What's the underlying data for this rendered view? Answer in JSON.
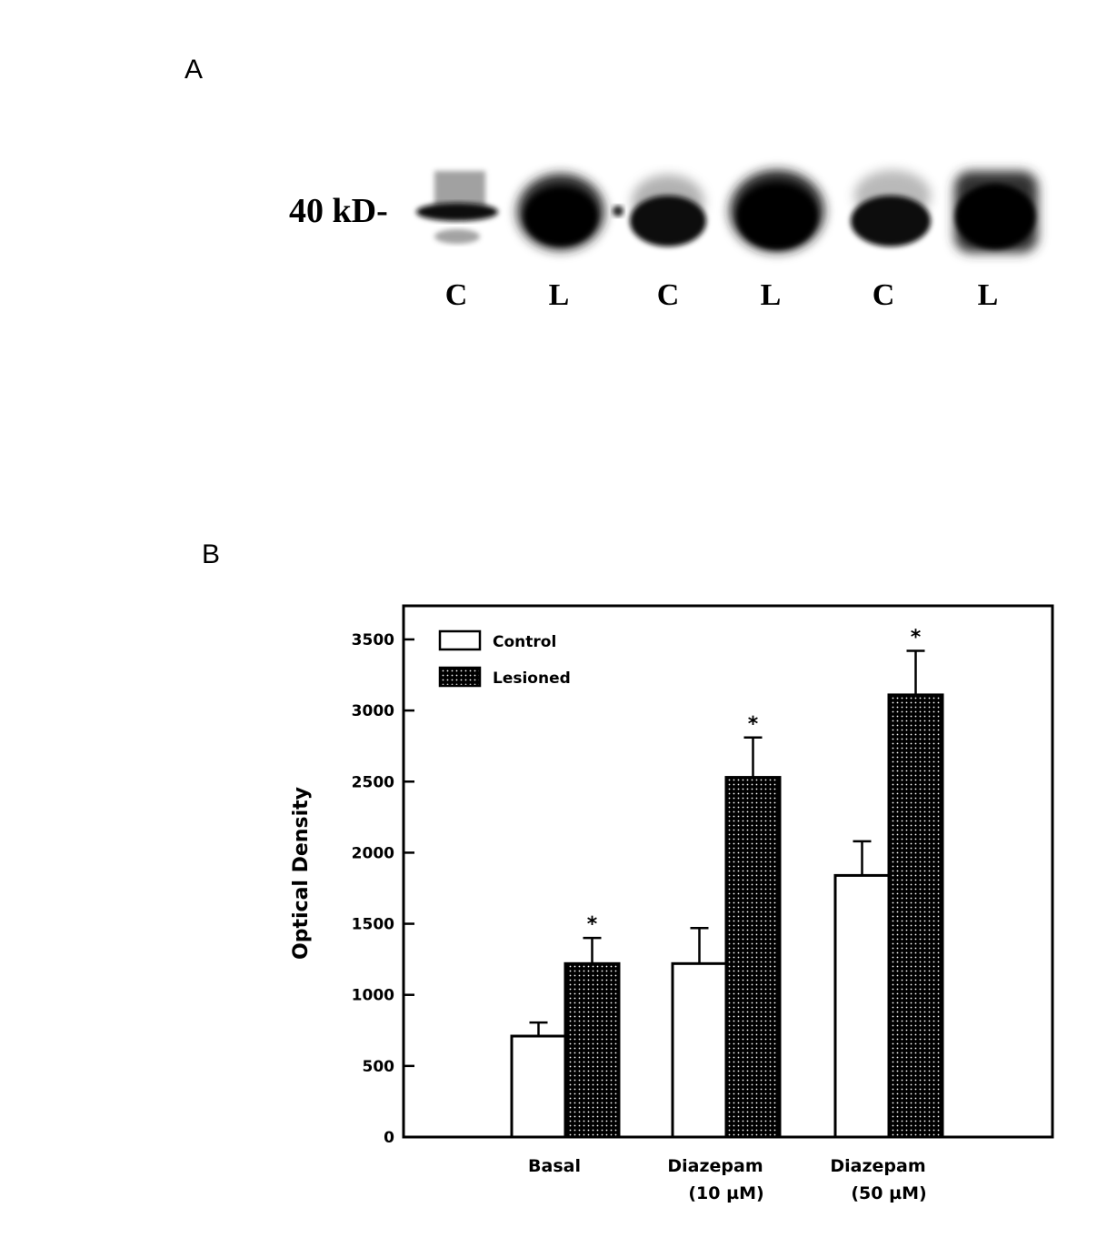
{
  "panel_a": {
    "label": "A",
    "marker_label": "40 kD-",
    "lanes": [
      "C",
      "L",
      "C",
      "L",
      "C",
      "L"
    ]
  },
  "panel_b": {
    "label": "B"
  },
  "chart_data": {
    "type": "bar",
    "categories": [
      "Basal",
      "Diazepam\n(10 µM)",
      "Diazepam\n(50 µM)"
    ],
    "series": [
      {
        "name": "Control",
        "values": [
          710,
          1220,
          1840
        ],
        "errors": [
          95,
          250,
          240
        ],
        "fill": "white"
      },
      {
        "name": "Lesioned",
        "values": [
          1220,
          2530,
          3110
        ],
        "errors": [
          180,
          280,
          310
        ],
        "fill": "stippled"
      }
    ],
    "significance_marks": [
      "*",
      "*",
      "*"
    ],
    "xlabel": "",
    "ylabel": "Optical Density",
    "ylim": [
      0,
      3700
    ],
    "yticks": [
      0,
      500,
      1000,
      1500,
      2000,
      2500,
      3000,
      3500
    ],
    "legend_position": "top-left",
    "grid": false,
    "colors": {
      "bar_edge": "#000000",
      "control_fill": "#ffffff",
      "lesioned_fill": "#1a1a1a"
    }
  }
}
